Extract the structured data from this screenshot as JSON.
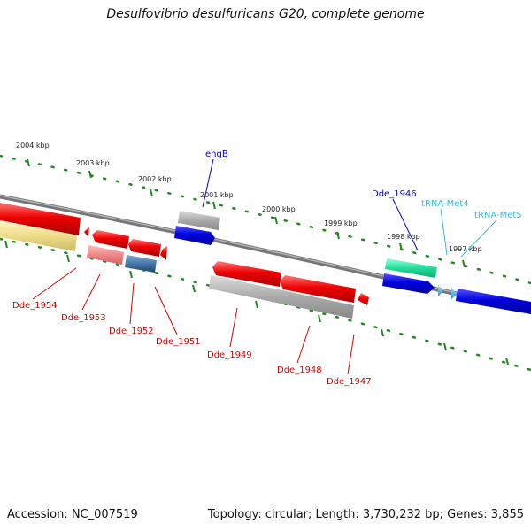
{
  "title": "Desulfovibrio desulfuricans G20, complete genome",
  "footer": {
    "accession": "Accession: NC_007519",
    "topology": "Topology: circular; Length: 3,730,232 bp; Genes: 3,855"
  },
  "scale_labels": [
    "2004 kbp",
    "2003 kbp",
    "2002 kbp",
    "2001 kbp",
    "2000 kbp",
    "1999 kbp",
    "1998 kbp",
    "1997 kbp"
  ],
  "gene_labels": [
    {
      "text": "engB",
      "color": "#0000cc"
    },
    {
      "text": "Dde_1946",
      "color": "#0000cc"
    },
    {
      "text": "tRNA-Met4",
      "color": "#33bbdd"
    },
    {
      "text": "tRNA-Met5",
      "color": "#33bbdd"
    },
    {
      "text": "Dde_1954",
      "color": "#dd0000"
    },
    {
      "text": "Dde_1953",
      "color": "#dd0000"
    },
    {
      "text": "Dde_1952",
      "color": "#dd0000"
    },
    {
      "text": "Dde_1951",
      "color": "#dd0000"
    },
    {
      "text": "Dde_1949",
      "color": "#dd0000"
    },
    {
      "text": "Dde_1948",
      "color": "#dd0000"
    },
    {
      "text": "Dde_1947",
      "color": "#dd0000"
    }
  ],
  "colors": {
    "protein_coding": "#ee0000",
    "forward_gene": "#0000dd",
    "pseudogene": "#aaaaaa",
    "trna": "#33bbee",
    "highlight_green": "#22dd99",
    "highlight_yellow": "#eedd88",
    "highlight_pink": "#ee8888",
    "highlight_steelblue": "#4477aa",
    "backbone": "#777777",
    "ticks": "#228822"
  }
}
